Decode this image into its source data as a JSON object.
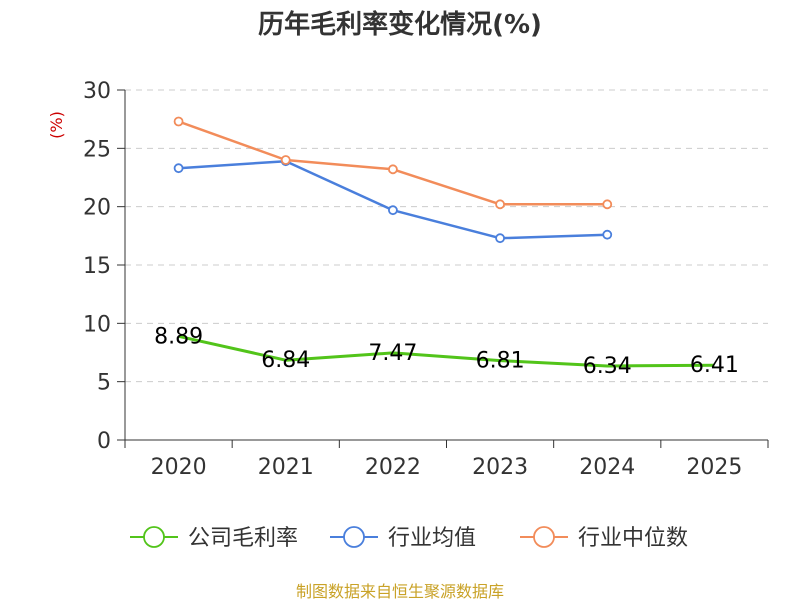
{
  "chart_data": {
    "type": "line",
    "title": "历年毛利率变化情况(%)",
    "ylabel": "(%)",
    "xlabel": "",
    "categories": [
      "2020",
      "2021",
      "2022",
      "2023",
      "2024",
      "2025"
    ],
    "ylim": [
      0,
      30
    ],
    "yticks": [
      0,
      5,
      10,
      15,
      20,
      25,
      30
    ],
    "grid": true,
    "legend_position": "bottom",
    "series": [
      {
        "name": "公司毛利率",
        "color": "#52c41a",
        "values": [
          8.89,
          6.84,
          7.47,
          6.81,
          6.34,
          6.41
        ],
        "labels": [
          "8.89",
          "6.84",
          "7.47",
          "6.81",
          "6.34",
          "6.41"
        ]
      },
      {
        "name": "行业均值",
        "color": "#4a7fdc",
        "values": [
          23.3,
          23.9,
          19.7,
          17.3,
          17.6,
          null
        ]
      },
      {
        "name": "行业中位数",
        "color": "#f28c5a",
        "values": [
          27.3,
          24.0,
          23.2,
          20.2,
          20.2,
          null
        ]
      }
    ]
  },
  "source": "制图数据来自恒生聚源数据库"
}
